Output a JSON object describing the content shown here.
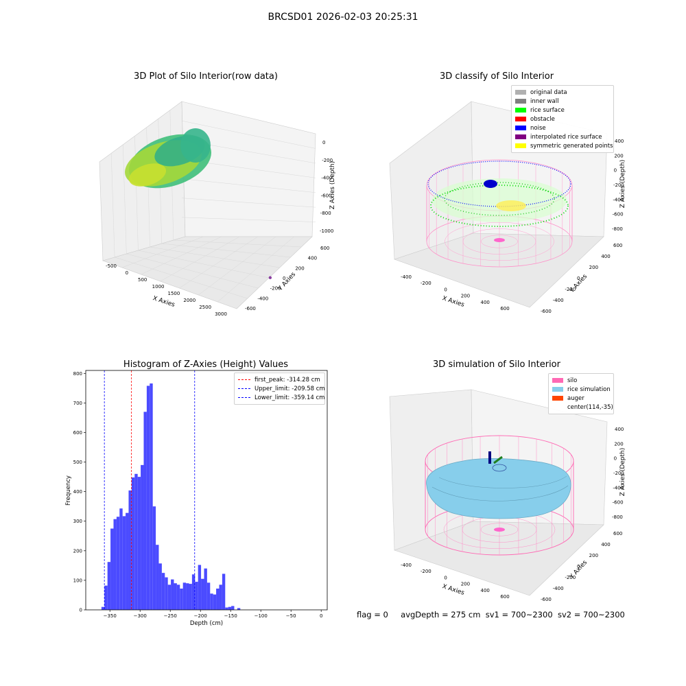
{
  "suptitle": "BRCSD01 2026-02-03 20:25:31",
  "footer": {
    "flag": "flag = 0",
    "avg_depth": "avgDepth = 275 cm",
    "sv1": "sv1 = 700~2300",
    "sv2": "sv2 = 700~2300"
  },
  "colors": {
    "raw_points": "#9ad83a",
    "grid_pane": "#f2f2f2",
    "silo": "#ff69b4",
    "rice_simulation": "#87ceeb",
    "auger": "#ff4500",
    "hist_bars": "#4b4bff",
    "peak_line": "#ff0000",
    "limit_line": "#0000ff"
  },
  "chart_data": [
    {
      "type": "scatter",
      "title": "3D Plot of Silo Interior(row data)",
      "xlabel": "X Axies",
      "ylabel": "Y Axies",
      "zlabel": "Z Axies (Depth)",
      "x_ticks": [
        "-500",
        "0",
        "500",
        "1000",
        "1500",
        "2000",
        "2500",
        "3000"
      ],
      "y_ticks": [
        "-600",
        "-400",
        "-200",
        "0",
        "200",
        "400",
        "600"
      ],
      "z_ticks": [
        "0",
        "-200",
        "-400",
        "-600",
        "-800",
        "-1000"
      ],
      "xlim": [
        -600,
        3200
      ],
      "ylim": [
        -650,
        650
      ],
      "zlim": [
        -1050,
        50
      ],
      "outlier_point": {
        "x": 3100,
        "y": 0,
        "z": -1000
      }
    },
    {
      "type": "scatter",
      "title": "3D classify of Silo Interior",
      "xlabel": "X Axies",
      "ylabel": "Y Axies",
      "zlabel": "Z Axies (Depth)",
      "x_ticks": [
        "-400",
        "-200",
        "0",
        "200",
        "400",
        "600"
      ],
      "y_ticks": [
        "-600",
        "-400",
        "-200",
        "0",
        "200",
        "400",
        "600"
      ],
      "z_ticks": [
        "400",
        "200",
        "0",
        "-200",
        "-400",
        "-600",
        "-800"
      ],
      "legend": [
        {
          "label": "original data",
          "color": "#b0b0b0"
        },
        {
          "label": "inner wall",
          "color": "#808080"
        },
        {
          "label": "rice surface",
          "color": "#00ff00"
        },
        {
          "label": "obstacle",
          "color": "#ff0000"
        },
        {
          "label": "noise",
          "color": "#0000ff"
        },
        {
          "label": "interpolated rice surface",
          "color": "#800080"
        },
        {
          "label": "symmetric generated points",
          "color": "#ffff00"
        }
      ],
      "legend_loc": "top-right"
    },
    {
      "type": "bar",
      "title": "Histogram of Z-Axies (Height) Values",
      "xlabel": "Depth (cm)",
      "ylabel": "Frequency",
      "xlim": [
        -390,
        10
      ],
      "ylim": [
        0,
        810
      ],
      "x_ticks": [
        -350,
        -300,
        -250,
        -200,
        -150,
        -100,
        -50,
        0
      ],
      "y_ticks": [
        0,
        100,
        200,
        300,
        400,
        500,
        600,
        700,
        800
      ],
      "bin_start": -364,
      "bin_width": 5,
      "values": [
        10,
        82,
        162,
        275,
        307,
        315,
        343,
        317,
        328,
        404,
        448,
        460,
        450,
        490,
        670,
        758,
        766,
        350,
        220,
        157,
        125,
        110,
        85,
        103,
        90,
        85,
        72,
        92,
        90,
        88,
        120,
        95,
        152,
        105,
        140,
        92,
        55,
        52,
        72,
        85,
        122,
        8,
        10,
        13,
        0,
        6
      ],
      "vlines": [
        {
          "label": "first_peak: -314.28 cm",
          "x": -314.28,
          "color": "#ff0000"
        },
        {
          "label": "Upper_limit: -209.58 cm",
          "x": -209.58,
          "color": "#0000ff"
        },
        {
          "label": "Lower_limit: -359.14 cm",
          "x": -359.14,
          "color": "#0000ff"
        }
      ],
      "legend_loc": "top-right"
    },
    {
      "type": "scatter",
      "title": "3D simulation of Silo Interior",
      "xlabel": "X Axies",
      "ylabel": "Y Axies",
      "zlabel": "Z Axies (Depth)",
      "x_ticks": [
        "-400",
        "-200",
        "0",
        "200",
        "400",
        "600"
      ],
      "y_ticks": [
        "-600",
        "-400",
        "-200",
        "0",
        "200",
        "400",
        "600"
      ],
      "z_ticks": [
        "400",
        "200",
        "0",
        "-200",
        "-400",
        "-600",
        "-800"
      ],
      "legend": [
        {
          "label": "silo",
          "color": "#ff69b4"
        },
        {
          "label": "rice simulation",
          "color": "#87ceeb"
        },
        {
          "label": "auger",
          "color": "#ff4500"
        },
        {
          "label": "center(114,-35)",
          "color": ""
        }
      ],
      "legend_loc": "top-right"
    }
  ]
}
